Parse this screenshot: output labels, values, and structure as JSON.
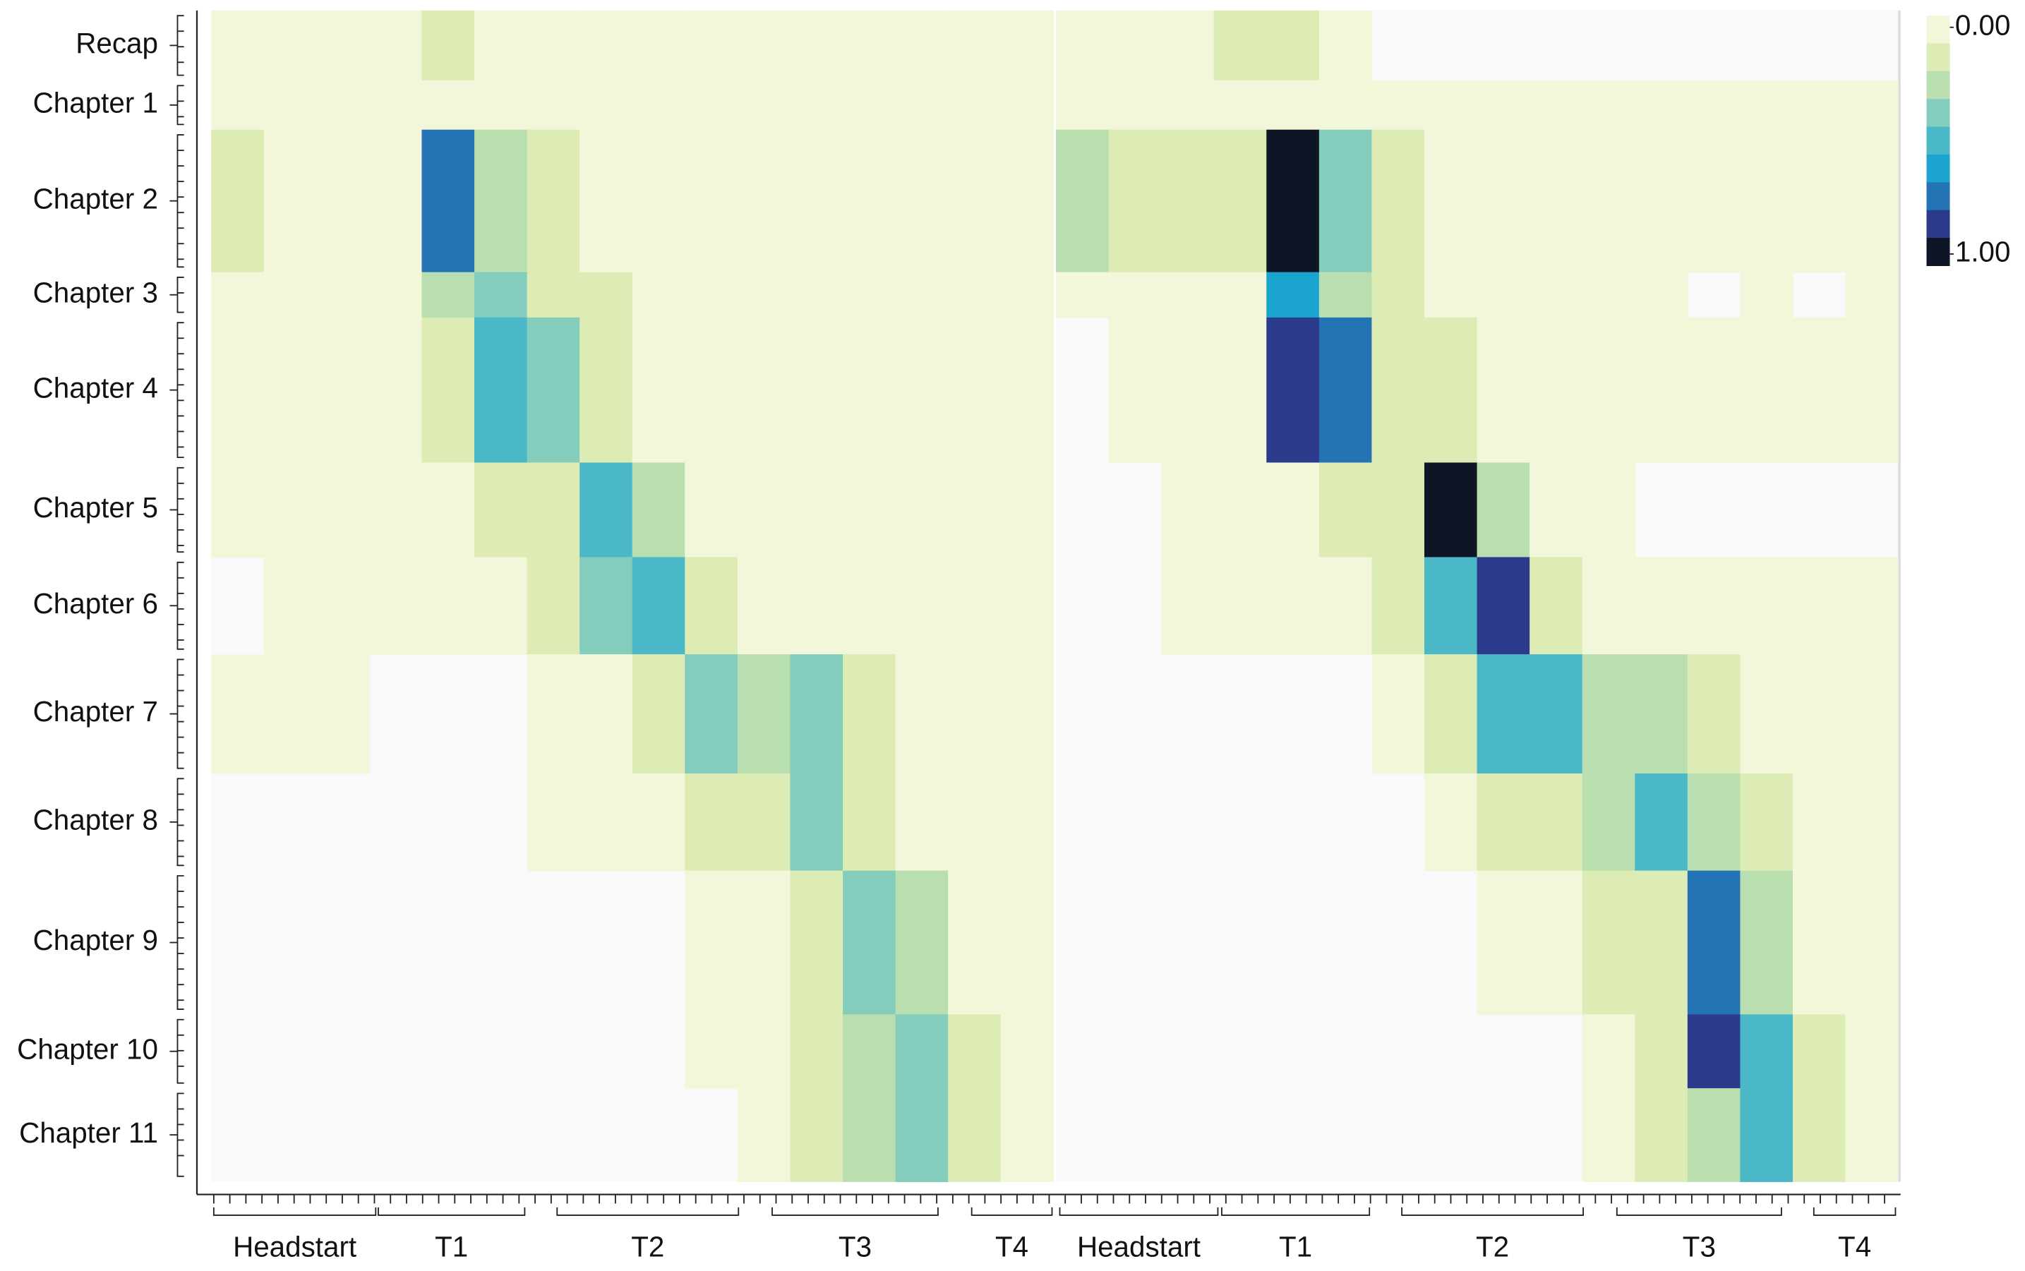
{
  "chart_data": {
    "type": "heatmap",
    "categories": [
      "Recap",
      "Chapter 1",
      "Chapter 2",
      "Chapter 3",
      "Chapter 4",
      "Chapter 5",
      "Chapter 6",
      "Chapter 7",
      "Chapter 8",
      "Chapter 9",
      "Chapter 10",
      "Chapter 11"
    ],
    "clim": [
      0,
      1
    ],
    "cticks": [
      {
        "value": 0,
        "label": "0.00"
      },
      {
        "value": 1,
        "label": "1.00"
      }
    ],
    "colormap": [
      "#f3f7d9",
      "#dcecb4",
      "#b9dfb0",
      "#84cdbd",
      "#4bb8c8",
      "#1aa4cf",
      "#2473b4",
      "#2b3a8b",
      "#0e1626"
    ],
    "panels": [
      {
        "x_groups": [
          "Headstart",
          "T1",
          "T2",
          "T3",
          "T4"
        ],
        "values": [
          [
            0.08,
            0.08,
            0.08,
            0.08,
            0.12,
            0.06,
            0.05,
            0.05,
            0.05,
            0.04,
            0.04,
            0.04,
            0.04,
            0.04,
            0.04,
            0.04
          ],
          [
            0.06,
            0.06,
            0.06,
            0.06,
            0.1,
            0.05,
            0.05,
            0.05,
            0.05,
            0.05,
            0.05,
            0.05,
            0.05,
            0.05,
            0.05,
            0.05
          ],
          [
            0.12,
            0.1,
            0.08,
            0.1,
            0.75,
            0.3,
            0.15,
            0.1,
            0.06,
            0.05,
            0.05,
            0.05,
            0.05,
            0.05,
            0.05,
            0.05
          ],
          [
            0.05,
            0.05,
            0.05,
            0.05,
            0.25,
            0.4,
            0.2,
            0.12,
            0.08,
            0.06,
            0.05,
            0.05,
            0.05,
            0.05,
            0.05,
            0.05
          ],
          [
            0.04,
            0.05,
            0.04,
            0.05,
            0.12,
            0.45,
            0.35,
            0.15,
            0.1,
            0.07,
            0.06,
            0.05,
            0.05,
            0.05,
            0.05,
            0.05
          ],
          [
            0.04,
            0.05,
            0.04,
            0.05,
            0.08,
            0.12,
            0.2,
            0.55,
            0.25,
            0.1,
            0.06,
            0.05,
            0.05,
            0.05,
            0.05,
            0.05
          ],
          [
            null,
            0.05,
            0.04,
            0.05,
            0.06,
            0.08,
            0.12,
            0.35,
            0.45,
            0.15,
            0.07,
            0.05,
            0.05,
            0.05,
            0.05,
            0.05
          ],
          [
            0.05,
            0.05,
            0.04,
            null,
            null,
            null,
            0.08,
            0.1,
            0.15,
            0.35,
            0.3,
            0.35,
            0.15,
            0.08,
            0.06,
            0.05
          ],
          [
            null,
            null,
            null,
            null,
            null,
            null,
            0.07,
            0.08,
            0.1,
            0.15,
            0.2,
            0.38,
            0.2,
            0.1,
            0.06,
            0.05
          ],
          [
            null,
            null,
            null,
            null,
            null,
            null,
            null,
            null,
            null,
            0.08,
            0.1,
            0.15,
            0.38,
            0.3,
            0.1,
            0.06
          ],
          [
            null,
            null,
            null,
            null,
            null,
            null,
            null,
            null,
            null,
            0.08,
            0.1,
            0.15,
            0.3,
            0.4,
            0.15,
            0.08
          ],
          [
            null,
            null,
            null,
            null,
            null,
            null,
            null,
            null,
            null,
            null,
            0.08,
            0.12,
            0.25,
            0.35,
            0.2,
            0.1
          ]
        ]
      },
      {
        "x_groups": [
          "Headstart",
          "T1",
          "T2",
          "T3",
          "T4"
        ],
        "values": [
          [
            0.1,
            0.08,
            0.1,
            0.15,
            0.12,
            0.05,
            null,
            null,
            null,
            null,
            null,
            null,
            null,
            null,
            null,
            null
          ],
          [
            0.08,
            0.06,
            0.08,
            0.1,
            0.1,
            0.05,
            0.05,
            0.05,
            0.05,
            0.05,
            0.05,
            0.05,
            0.05,
            0.05,
            0.05,
            0.05
          ],
          [
            0.3,
            0.15,
            0.12,
            0.15,
            0.95,
            0.35,
            0.15,
            0.1,
            0.08,
            0.07,
            0.06,
            0.05,
            0.05,
            0.06,
            0.05,
            0.05
          ],
          [
            0.05,
            0.06,
            0.05,
            0.08,
            0.6,
            0.25,
            0.15,
            0.1,
            0.06,
            0.05,
            0.05,
            0.05,
            null,
            0.05,
            null,
            0.05
          ],
          [
            null,
            0.05,
            0.05,
            0.06,
            0.85,
            0.7,
            0.2,
            0.12,
            0.08,
            0.06,
            0.05,
            0.05,
            0.05,
            0.05,
            0.05,
            0.05
          ],
          [
            null,
            null,
            0.05,
            0.06,
            0.08,
            0.12,
            0.2,
            0.95,
            0.3,
            0.1,
            0.06,
            null,
            null,
            null,
            null,
            null
          ],
          [
            null,
            null,
            0.05,
            0.05,
            0.06,
            0.1,
            0.15,
            0.5,
            0.85,
            0.15,
            0.06,
            0.05,
            0.05,
            0.05,
            0.05,
            0.05
          ],
          [
            null,
            null,
            null,
            null,
            null,
            null,
            0.08,
            0.12,
            0.55,
            0.45,
            0.3,
            0.25,
            0.15,
            0.08,
            0.06,
            0.05
          ],
          [
            null,
            null,
            null,
            null,
            null,
            null,
            null,
            0.08,
            0.12,
            0.2,
            0.3,
            0.45,
            0.25,
            0.12,
            0.08,
            0.06
          ],
          [
            null,
            null,
            null,
            null,
            null,
            null,
            null,
            null,
            0.06,
            0.1,
            0.15,
            0.2,
            0.7,
            0.3,
            0.1,
            0.06
          ],
          [
            null,
            null,
            null,
            null,
            null,
            null,
            null,
            null,
            null,
            null,
            0.08,
            0.15,
            0.8,
            0.5,
            0.12,
            0.06
          ],
          [
            null,
            null,
            null,
            null,
            null,
            null,
            null,
            null,
            null,
            null,
            0.08,
            0.12,
            0.3,
            0.45,
            0.15,
            0.06
          ]
        ]
      }
    ]
  }
}
